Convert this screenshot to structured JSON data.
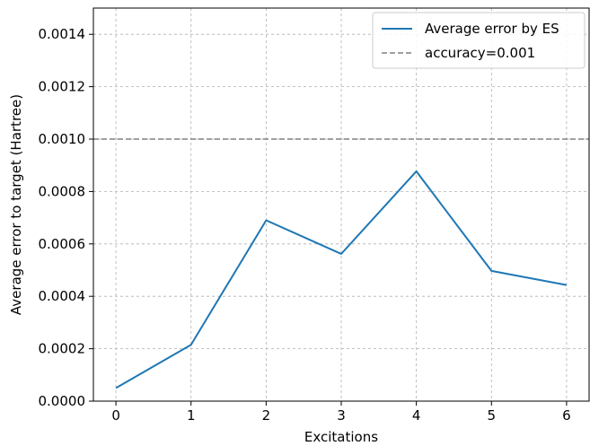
{
  "chart_data": {
    "type": "line",
    "title": "",
    "xlabel": "Excitations",
    "ylabel": "Average error to target (Hartree)",
    "xlim": [
      -0.3,
      6.3
    ],
    "ylim": [
      0,
      0.0015
    ],
    "grid": true,
    "legend_position": "top-right",
    "x_ticks": [
      0,
      1,
      2,
      3,
      4,
      5,
      6
    ],
    "x_tick_labels": [
      "0",
      "1",
      "2",
      "3",
      "4",
      "5",
      "6"
    ],
    "y_ticks": [
      0,
      0.0002,
      0.0004,
      0.0006,
      0.0008,
      0.001,
      0.0012,
      0.0014
    ],
    "y_tick_labels": [
      "0.0000",
      "0.0002",
      "0.0004",
      "0.0006",
      "0.0008",
      "0.0010",
      "0.0012",
      "0.0014"
    ],
    "series": [
      {
        "name": "Average error by ES",
        "color": "#1f77b4",
        "style": "solid",
        "x": [
          0,
          1,
          2,
          3,
          4,
          5,
          6
        ],
        "y": [
          5e-05,
          0.000215,
          0.00069,
          0.000562,
          0.000877,
          0.000497,
          0.000443
        ]
      }
    ],
    "reference_lines": [
      {
        "name": "accuracy=0.001",
        "y": 0.001,
        "color": "#808080",
        "style": "dashed"
      }
    ]
  }
}
